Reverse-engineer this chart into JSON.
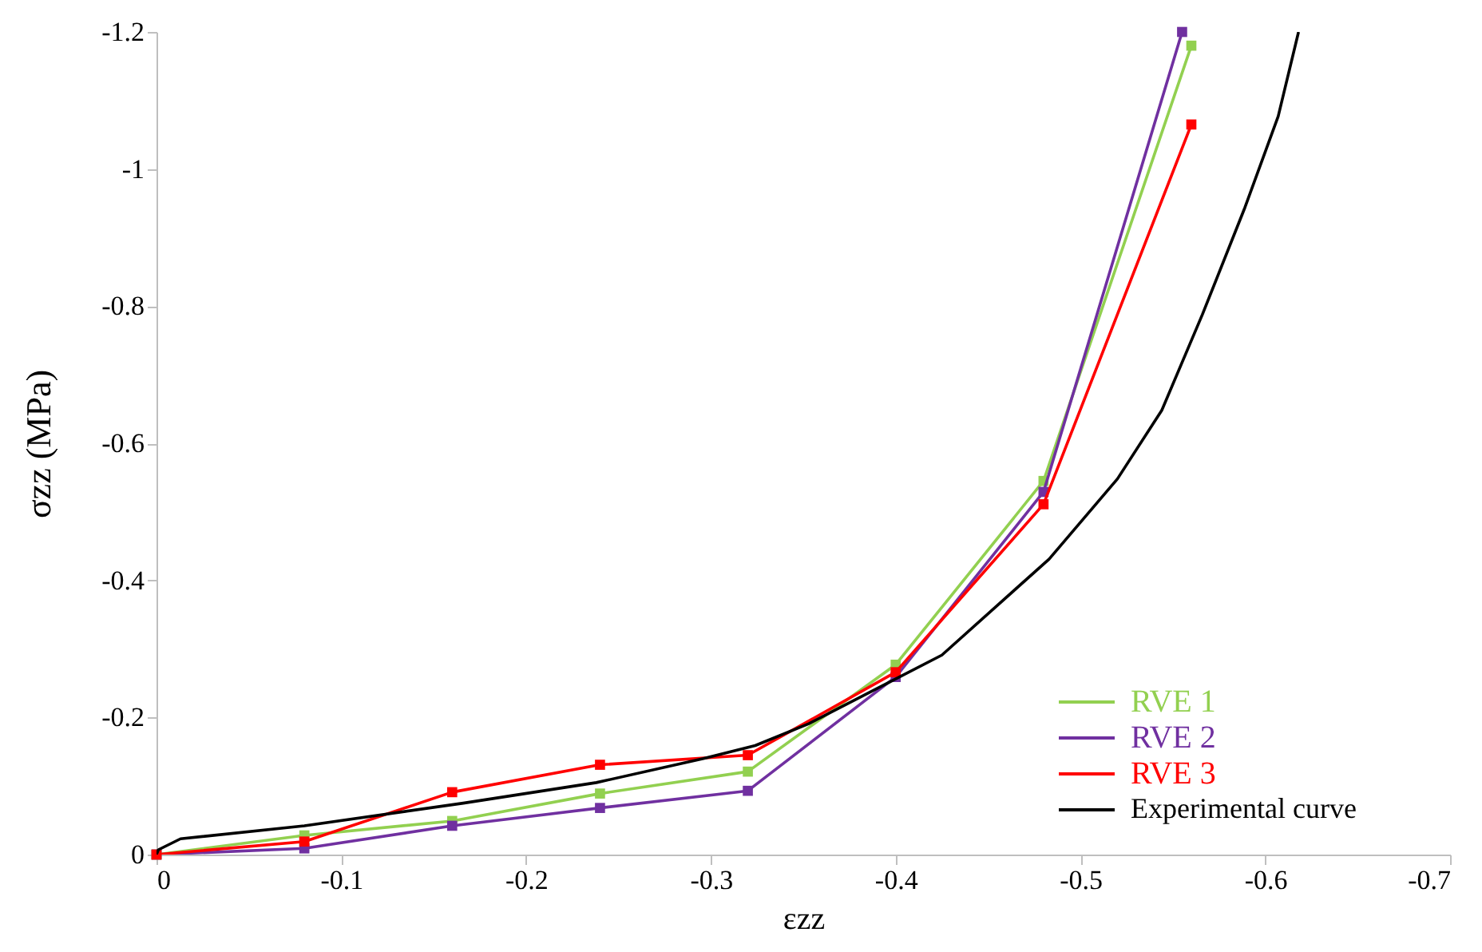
{
  "chart_data": {
    "type": "line",
    "xlabel": "εzz",
    "ylabel": "σzz (MPa)",
    "xlim": [
      0,
      -0.7
    ],
    "ylim": [
      0,
      -1.2
    ],
    "xticks": [
      0,
      -0.1,
      -0.2,
      -0.3,
      -0.4,
      -0.5,
      -0.6,
      -0.7
    ],
    "yticks": [
      0,
      -0.2,
      -0.4,
      -0.6,
      -0.8,
      -1,
      -1.2
    ],
    "grid": false,
    "legend": "bottom right",
    "line_style": "solid",
    "series": [
      {
        "name": "RVE 1",
        "color": "#92d050",
        "marker": "square",
        "x": [
          0,
          -0.08,
          -0.16,
          -0.24,
          -0.32,
          -0.4,
          -0.48,
          -0.56
        ],
        "values": [
          0,
          -0.028,
          -0.049,
          -0.089,
          -0.121,
          -0.277,
          -0.545,
          -1.18
        ]
      },
      {
        "name": "RVE 2",
        "color": "#7030a0",
        "marker": "square",
        "x": [
          0,
          -0.08,
          -0.16,
          -0.24,
          -0.32,
          -0.4,
          -0.48,
          -0.555
        ],
        "values": [
          0,
          -0.009,
          -0.042,
          -0.068,
          -0.093,
          -0.259,
          -0.529,
          -1.2
        ]
      },
      {
        "name": "RVE 3",
        "color": "#ff0000",
        "marker": "square",
        "x": [
          0,
          -0.08,
          -0.16,
          -0.24,
          -0.32,
          -0.4,
          -0.48,
          -0.56
        ],
        "values": [
          0,
          -0.019,
          -0.091,
          -0.131,
          -0.145,
          -0.266,
          -0.511,
          -1.065
        ]
      },
      {
        "name": "Experimental curve",
        "color": "#000000",
        "marker": "none",
        "x": [
          0,
          -0.001,
          -0.013,
          -0.08,
          -0.166,
          -0.238,
          -0.296,
          -0.324,
          -0.353,
          -0.397,
          -0.425,
          -0.483,
          -0.52,
          -0.544,
          -0.566,
          -0.589,
          -0.607,
          -0.618
        ],
        "values": [
          0,
          -0.007,
          -0.023,
          -0.042,
          -0.075,
          -0.105,
          -0.14,
          -0.159,
          -0.191,
          -0.252,
          -0.291,
          -0.431,
          -0.548,
          -0.648,
          -0.788,
          -0.944,
          -1.077,
          -1.2
        ]
      }
    ]
  }
}
